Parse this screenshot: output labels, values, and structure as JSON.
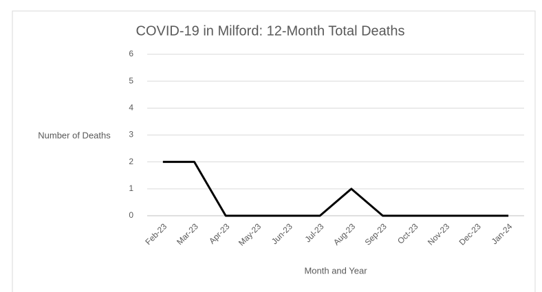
{
  "chart_data": {
    "type": "line",
    "title": "COVID-19 in Milford: 12-Month Total Deaths",
    "x_label": "Month and Year",
    "y_label": "Number of Deaths",
    "categories": [
      "Feb-23",
      "Mar-23",
      "Apr-23",
      "May-23",
      "Jun-23",
      "Jul-23",
      "Aug-23",
      "Sep-23",
      "Oct-23",
      "Nov-23",
      "Dec-23",
      "Jan-24"
    ],
    "series": [
      {
        "name": "Deaths",
        "color": "#000000",
        "values": [
          2,
          2,
          0,
          0,
          0,
          0,
          1,
          0,
          0,
          0,
          0,
          0
        ]
      }
    ],
    "ylim": [
      0,
      6
    ],
    "yticks": [
      0,
      1,
      2,
      3,
      4,
      5,
      6
    ],
    "grid": true,
    "legend": false
  }
}
